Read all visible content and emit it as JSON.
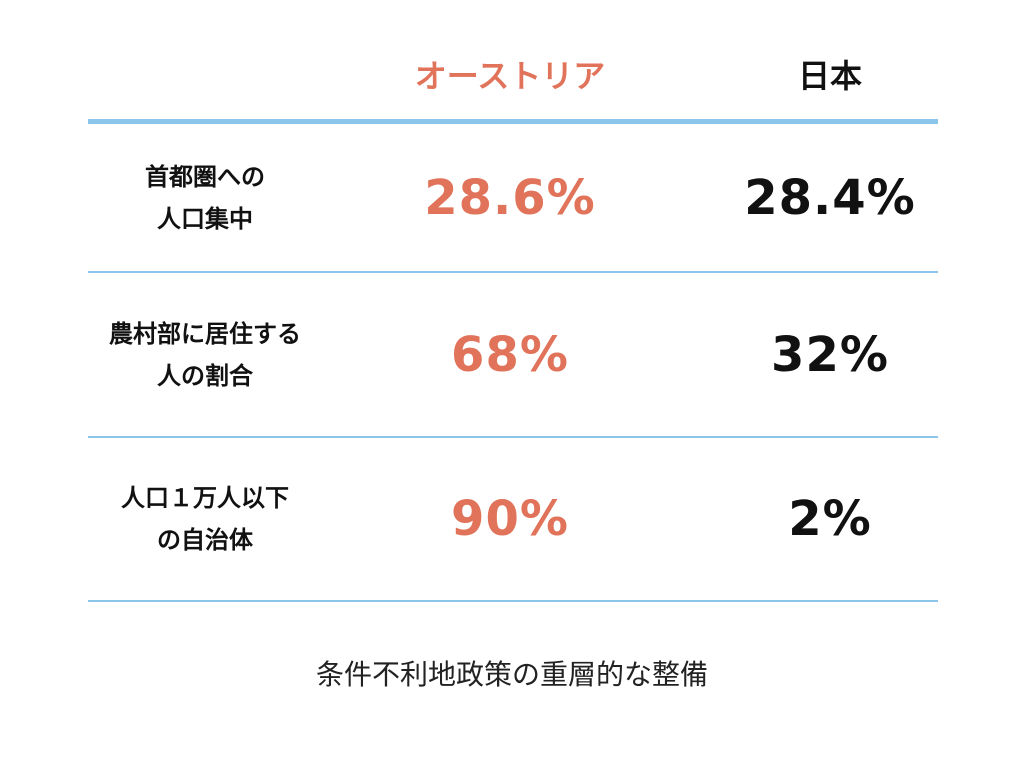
{
  "columns": {
    "austria": "オーストリア",
    "japan": "日本"
  },
  "rows": [
    {
      "label_line1": "首都圏への",
      "label_line2": "人口集中",
      "austria": "28.6%",
      "japan": "28.4%"
    },
    {
      "label_line1": "農村部に居住する",
      "label_line2": "人の割合",
      "austria": "68%",
      "japan": "32%"
    },
    {
      "label_line1": "人口１万人以下",
      "label_line2": "の自治体",
      "austria": "90%",
      "japan": "2%"
    }
  ],
  "footer": "条件不利地政策の重層的な整備",
  "colors": {
    "accent": "#e0735a",
    "rule": "#8cc5ea",
    "text": "#111111"
  }
}
